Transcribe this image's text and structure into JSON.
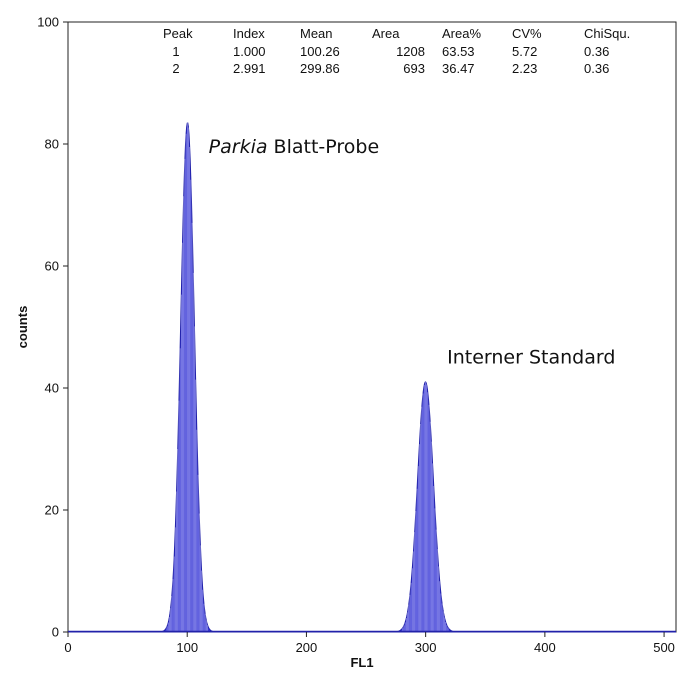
{
  "chart_data": {
    "type": "area",
    "title": "",
    "xlabel": "FL1",
    "ylabel": "counts",
    "xlim": [
      0,
      510
    ],
    "ylim": [
      0,
      100
    ],
    "x_ticks": [
      "0",
      "100",
      "200",
      "300",
      "400",
      "500"
    ],
    "y_ticks": [
      "0",
      "20",
      "40",
      "60",
      "80",
      "100"
    ],
    "grid": false,
    "legend": "none",
    "series": [
      {
        "fill_color": "#3b3bd6",
        "edge_color": "#2222aa",
        "peaks": [
          {
            "mean": 100.26,
            "height": 83.5,
            "cv_percent": 5.72
          },
          {
            "mean": 299.86,
            "height": 41,
            "cv_percent": 2.23
          }
        ]
      }
    ],
    "stats_table": {
      "columns": [
        "Peak",
        "Index",
        "Mean",
        "Area",
        "Area%",
        "CV%",
        "ChiSqu."
      ],
      "rows": [
        [
          "1",
          "1.000",
          "100.26",
          "1208",
          "63.53",
          "5.72",
          "0.36"
        ],
        [
          "2",
          "2.991",
          "299.86",
          "693",
          "36.47",
          "2.23",
          "0.36"
        ]
      ]
    },
    "annotations": [
      {
        "text_italic": "Parkia",
        "text": " Blatt-Probe",
        "x": 118,
        "y": 78.5
      },
      {
        "text": "Interner Standard",
        "x": 318,
        "y": 44
      }
    ]
  }
}
